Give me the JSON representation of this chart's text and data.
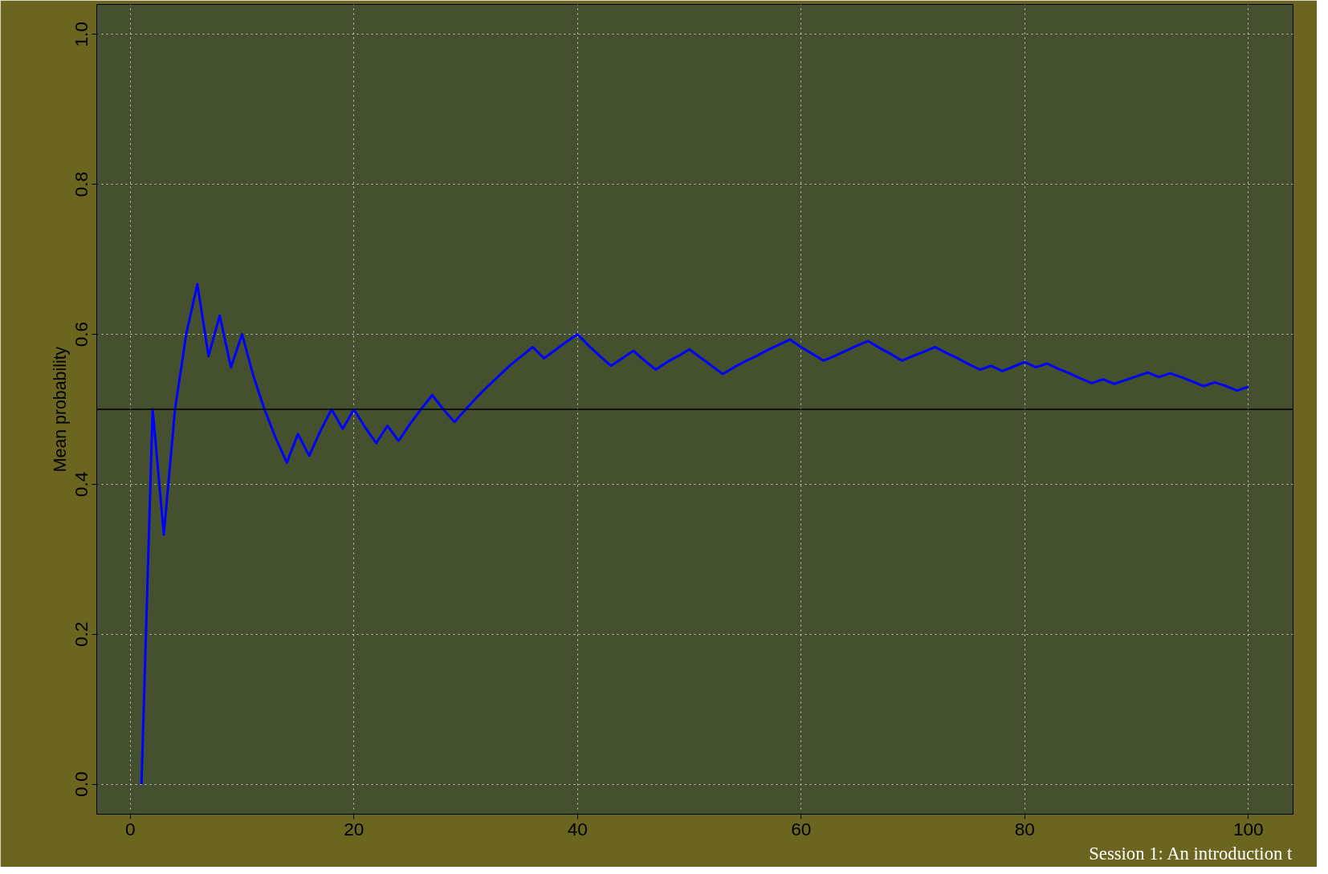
{
  "chart_data": {
    "type": "line",
    "ylabel": "Mean probability",
    "x": [
      1,
      2,
      3,
      4,
      5,
      6,
      7,
      8,
      9,
      10,
      11,
      12,
      13,
      14,
      15,
      16,
      17,
      18,
      19,
      20,
      21,
      22,
      23,
      24,
      25,
      26,
      27,
      28,
      29,
      30,
      31,
      32,
      33,
      34,
      35,
      36,
      37,
      38,
      39,
      40,
      41,
      42,
      43,
      44,
      45,
      46,
      47,
      48,
      49,
      50,
      51,
      52,
      53,
      54,
      55,
      56,
      57,
      58,
      59,
      60,
      61,
      62,
      63,
      64,
      65,
      66,
      67,
      68,
      69,
      70,
      71,
      72,
      73,
      74,
      75,
      76,
      77,
      78,
      79,
      80,
      81,
      82,
      83,
      84,
      85,
      86,
      87,
      88,
      89,
      90,
      91,
      92,
      93,
      94,
      95,
      96,
      97,
      98,
      99,
      100
    ],
    "series": [
      {
        "color": "#0000ff",
        "values": [
          0,
          0.5,
          0.333,
          0.5,
          0.6,
          0.667,
          0.571,
          0.625,
          0.556,
          0.6,
          0.545,
          0.5,
          0.462,
          0.429,
          0.467,
          0.438,
          0.471,
          0.5,
          0.474,
          0.5,
          0.476,
          0.455,
          0.478,
          0.458,
          0.48,
          0.5,
          0.519,
          0.5,
          0.483,
          0.5,
          0.516,
          0.531,
          0.545,
          0.559,
          0.571,
          0.583,
          0.568,
          0.579,
          0.59,
          0.6,
          0.585,
          0.571,
          0.558,
          0.568,
          0.578,
          0.565,
          0.553,
          0.563,
          0.571,
          0.58,
          0.569,
          0.558,
          0.547,
          0.556,
          0.564,
          0.571,
          0.579,
          0.586,
          0.593,
          0.583,
          0.574,
          0.565,
          0.571,
          0.578,
          0.585,
          0.591,
          0.582,
          0.574,
          0.565,
          0.571,
          0.577,
          0.583,
          0.575,
          0.568,
          0.56,
          0.553,
          0.558,
          0.551,
          0.557,
          0.563,
          0.556,
          0.561,
          0.554,
          0.548,
          0.541,
          0.535,
          0.54,
          0.534,
          0.539,
          0.544,
          0.549,
          0.543,
          0.548,
          0.543,
          0.537,
          0.531,
          0.536,
          0.531,
          0.525,
          0.53
        ]
      }
    ],
    "xlim": [
      -3,
      104
    ],
    "ylim": [
      -0.04,
      1.04
    ],
    "xticks": [
      0,
      20,
      40,
      60,
      80,
      100
    ],
    "yticks": [
      {
        "value": 0,
        "label": "0.0"
      },
      {
        "value": 0.2,
        "label": "0.2"
      },
      {
        "value": 0.4,
        "label": "0.4"
      },
      {
        "value": 0.6,
        "label": "0.6"
      },
      {
        "value": 0.8,
        "label": "0.8"
      },
      {
        "value": 1,
        "label": "1.0"
      }
    ],
    "grid": true,
    "ref_lines": [
      {
        "axis": "y",
        "value": 0.5,
        "color": "#000000"
      }
    ],
    "annotations": [
      "Session 1: An introduction t"
    ]
  }
}
